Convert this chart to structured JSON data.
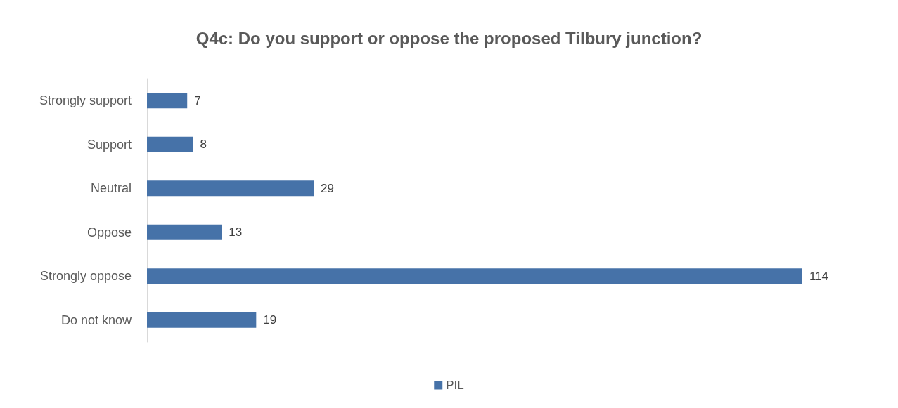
{
  "chart_data": {
    "type": "bar",
    "orientation": "horizontal",
    "title": "Q4c: Do you support or oppose the proposed Tilbury junction?",
    "categories": [
      "Strongly support",
      "Support",
      "Neutral",
      "Oppose",
      "Strongly oppose",
      "Do not know"
    ],
    "series": [
      {
        "name": "PIL",
        "color": "#4672a8",
        "values": [
          7,
          8,
          29,
          13,
          114,
          19
        ]
      }
    ],
    "data_labels": true,
    "legend": "bottom"
  }
}
